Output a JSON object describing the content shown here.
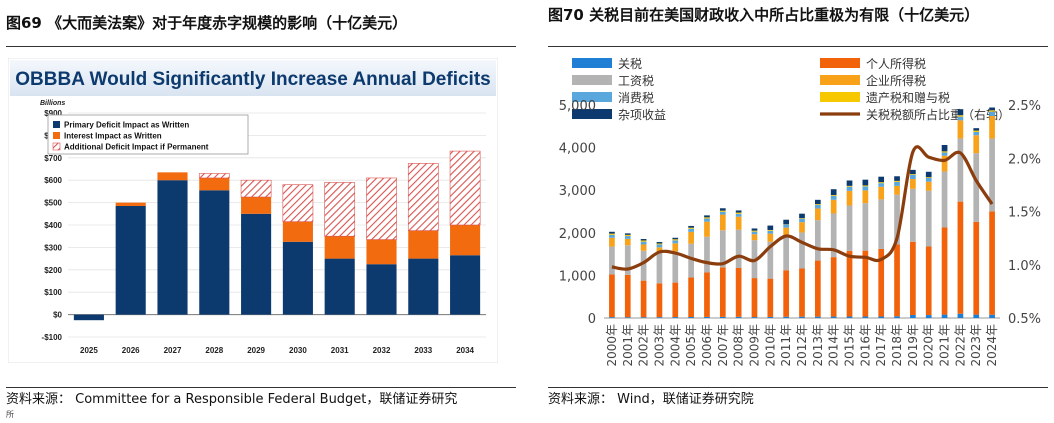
{
  "figure1": {
    "caption": "图69 《大而美法案》对于年度赤字规模的影响（十亿美元）",
    "source": "资料来源： Committee for a Responsible Federal Budget，联储证券研究",
    "source_tail": "所"
  },
  "figure2": {
    "caption": "图70 关税目前在美国财政收入中所占比重极为有限（十亿美元）",
    "source": "资料来源： Wind，联储证券研究院"
  },
  "colors": {
    "primary_deficit": "#0d3a6e",
    "interest": "#f26b0f",
    "hatch": "#d9534f",
    "individual": "#f2620a",
    "payroll": "#b3b3b3",
    "corporate": "#f8a21c",
    "excise": "#5aa7dd",
    "estate": "#f7c800",
    "customs": "#1f7fd4",
    "misc": "#0d3a6e",
    "share_line": "#8b3d0d"
  },
  "chart_data": [
    {
      "type": "bar",
      "stacked": true,
      "title": "OBBBA Would Significantly Increase Annual Deficits",
      "unit_label": "Billions",
      "categories": [
        "2025",
        "2026",
        "2027",
        "2028",
        "2029",
        "2030",
        "2031",
        "2032",
        "2033",
        "2034"
      ],
      "series": [
        {
          "name": "Primary Deficit Impact as Written",
          "values": [
            -25,
            485,
            600,
            555,
            450,
            325,
            250,
            225,
            250,
            265
          ]
        },
        {
          "name": "Interest Impact as Written",
          "values": [
            0,
            15,
            35,
            55,
            75,
            90,
            100,
            110,
            125,
            135
          ]
        },
        {
          "name": "Additional Deficit Impact if Permanent",
          "values": [
            0,
            0,
            0,
            20,
            75,
            165,
            240,
            275,
            300,
            330
          ]
        }
      ],
      "ylim": [
        -100,
        900
      ],
      "yticks": [
        -100,
        0,
        100,
        200,
        300,
        400,
        500,
        600,
        700,
        800,
        900
      ],
      "ytick_labels": [
        "-$100",
        "$0",
        "$100",
        "$200",
        "$300",
        "$400",
        "$500",
        "$600",
        "$700",
        "$800",
        "$900"
      ],
      "legend_position": "top-left"
    },
    {
      "type": "bar",
      "stacked": true,
      "categories": [
        "2000年",
        "2001年",
        "2002年",
        "2003年",
        "2004年",
        "2005年",
        "2006年",
        "2007年",
        "2008年",
        "2009年",
        "2010年",
        "2011年",
        "2012年",
        "2013年",
        "2014年",
        "2015年",
        "2016年",
        "2017年",
        "2018年",
        "2019年",
        "2020年",
        "2021年",
        "2022年",
        "2023年",
        "2024年"
      ],
      "series": [
        {
          "name": "关税",
          "values": [
            20,
            19,
            19,
            20,
            22,
            23,
            25,
            26,
            28,
            22,
            25,
            30,
            31,
            32,
            34,
            35,
            35,
            35,
            41,
            71,
            69,
            80,
            100,
            80,
            77
          ]
        },
        {
          "name": "个人所得税",
          "values": [
            1004,
            994,
            858,
            794,
            809,
            927,
            1044,
            1163,
            1146,
            915,
            899,
            1091,
            1132,
            1316,
            1395,
            1541,
            1546,
            1587,
            1684,
            1718,
            1609,
            2044,
            2632,
            2176,
            2426
          ]
        },
        {
          "name": "工资税",
          "values": [
            652,
            694,
            701,
            713,
            733,
            794,
            838,
            870,
            900,
            891,
            865,
            819,
            845,
            948,
            1024,
            1065,
            1115,
            1162,
            1171,
            1243,
            1310,
            1314,
            1483,
            1614,
            1709
          ]
        },
        {
          "name": "企业所得税",
          "values": [
            207,
            151,
            148,
            132,
            189,
            278,
            354,
            370,
            304,
            138,
            191,
            181,
            242,
            274,
            321,
            344,
            300,
            297,
            205,
            230,
            212,
            372,
            425,
            420,
            530
          ]
        },
        {
          "name": "消费税",
          "values": [
            69,
            66,
            67,
            68,
            70,
            73,
            74,
            65,
            67,
            62,
            67,
            72,
            79,
            84,
            93,
            98,
            95,
            84,
            95,
            99,
            87,
            75,
            88,
            76,
            102
          ]
        },
        {
          "name": "遗产税和赠与税",
          "values": [
            29,
            28,
            27,
            22,
            25,
            25,
            28,
            26,
            29,
            23,
            19,
            7,
            14,
            19,
            19,
            19,
            21,
            23,
            23,
            17,
            18,
            27,
            33,
            34,
            32
          ]
        },
        {
          "name": "杂项收益",
          "values": [
            43,
            35,
            34,
            34,
            35,
            41,
            46,
            56,
            51,
            51,
            104,
            107,
            106,
            101,
            137,
            126,
            135,
            129,
            108,
            99,
            127,
            149,
            141,
            56,
            65
          ]
        }
      ],
      "line_series": {
        "name": "关税税额所占比重（右轴）",
        "axis": "right",
        "values": [
          0.98,
          0.96,
          1.02,
          1.12,
          1.11,
          1.06,
          1.02,
          1.01,
          1.08,
          1.04,
          1.17,
          1.27,
          1.21,
          1.15,
          1.14,
          1.08,
          1.07,
          1.05,
          1.25,
          2.06,
          2.01,
          1.98,
          2.05,
          1.79,
          1.57
        ]
      },
      "ylim": [
        0,
        5000
      ],
      "yticks": [
        0,
        1000,
        2000,
        3000,
        4000,
        5000
      ],
      "ytick_labels": [
        "0",
        "1,000",
        "2,000",
        "3,000",
        "4,000",
        "5,000"
      ],
      "y2lim": [
        0.5,
        2.5
      ],
      "y2ticks": [
        0.5,
        1.0,
        1.5,
        2.0,
        2.5
      ],
      "y2tick_labels": [
        "0.5%",
        "1.0%",
        "1.5%",
        "2.0%",
        "2.5%"
      ],
      "legend": [
        "关税",
        "个人所得税",
        "工资税",
        "企业所得税",
        "消费税",
        "遗产税和赠与税",
        "杂项收益",
        "关税税额所占比重（右轴）"
      ],
      "legend_position": "top"
    }
  ]
}
